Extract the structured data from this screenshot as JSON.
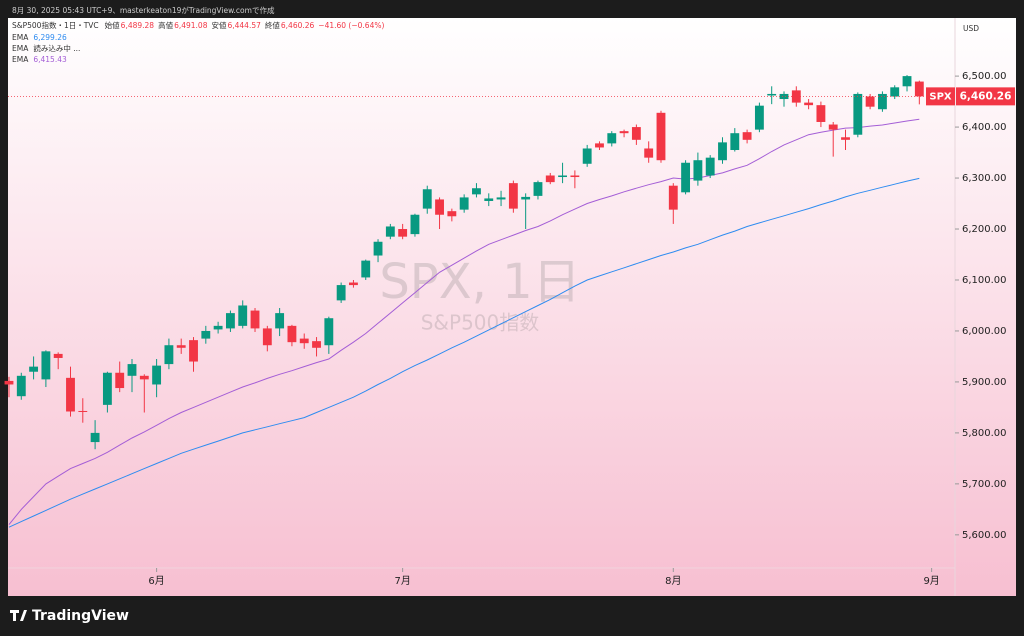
{
  "chart_data": {
    "type": "candlestick",
    "created": "8月 30, 2025 05:43 UTC+9、masterkeaton19がTradingView.comで作成",
    "symbol": "S&P500指数・1日・TVC",
    "ohlc_legend": [
      {
        "label": "始値",
        "value": "6,489.28"
      },
      {
        "label": "高値",
        "value": "6,491.08"
      },
      {
        "label": "安値",
        "value": "6,444.57"
      },
      {
        "label": "終値",
        "value": "6,460.26"
      }
    ],
    "change": "−41.60 (−0.64%)",
    "up_color": "#089981",
    "down_color": "#f23645",
    "open": [
      5902,
      5872,
      5920,
      5905,
      5955,
      5908,
      5843,
      5782,
      5855,
      5918,
      5912,
      5912,
      5895,
      5935,
      5972,
      5982,
      5985,
      6003,
      6005,
      6010,
      6040,
      6005,
      6005,
      6010,
      5985,
      5980,
      5972,
      6060,
      6095,
      6105,
      6148,
      6185,
      6200,
      6190,
      6240,
      6258,
      6235,
      6238,
      6268,
      6255,
      6258,
      6290,
      6258,
      6265,
      6305,
      6302,
      6305,
      6328,
      6368,
      6368,
      6392,
      6400,
      6358,
      6428,
      6285,
      6272,
      6295,
      6305,
      6335,
      6355,
      6390,
      6395,
      6462,
      6455,
      6472,
      6448,
      6443,
      6405,
      6380,
      6385,
      6460,
      6435,
      6460,
      6480,
      6489.28
    ],
    "high": [
      5910,
      5918,
      5950,
      5962,
      5958,
      5930,
      5868,
      5825,
      5920,
      5940,
      5945,
      5915,
      5945,
      5985,
      5985,
      5988,
      6010,
      6018,
      6040,
      6060,
      6045,
      6010,
      6045,
      6012,
      5995,
      5988,
      6028,
      6095,
      6100,
      6140,
      6180,
      6210,
      6210,
      6230,
      6285,
      6262,
      6240,
      6268,
      6290,
      6270,
      6275,
      6295,
      6270,
      6295,
      6310,
      6330,
      6315,
      6365,
      6372,
      6392,
      6395,
      6405,
      6372,
      6432,
      6290,
      6335,
      6350,
      6345,
      6380,
      6398,
      6395,
      6448,
      6480,
      6470,
      6480,
      6455,
      6450,
      6410,
      6395,
      6468,
      6465,
      6470,
      6482,
      6502,
      6491.08
    ],
    "low": [
      5870,
      5865,
      5905,
      5890,
      5925,
      5832,
      5820,
      5768,
      5840,
      5880,
      5880,
      5840,
      5870,
      5925,
      5955,
      5920,
      5975,
      5995,
      5998,
      6005,
      5998,
      5960,
      5990,
      5970,
      5965,
      5950,
      5955,
      6055,
      6085,
      6100,
      6135,
      6180,
      6180,
      6185,
      6230,
      6200,
      6215,
      6232,
      6262,
      6245,
      6245,
      6232,
      6200,
      6258,
      6288,
      6290,
      6280,
      6322,
      6355,
      6362,
      6380,
      6365,
      6330,
      6330,
      6210,
      6268,
      6285,
      6300,
      6328,
      6352,
      6368,
      6390,
      6445,
      6440,
      6440,
      6435,
      6400,
      6342,
      6355,
      6380,
      6435,
      6430,
      6455,
      6470,
      6444.57
    ],
    "close": [
      5895,
      5912,
      5930,
      5960,
      5947,
      5842,
      5842,
      5800,
      5918,
      5888,
      5935,
      5905,
      5932,
      5972,
      5967,
      5940,
      6000,
      6010,
      6035,
      6050,
      6005,
      5972,
      6035,
      5978,
      5976,
      5967,
      6025,
      6090,
      6090,
      6138,
      6175,
      6205,
      6185,
      6228,
      6278,
      6228,
      6225,
      6262,
      6280,
      6260,
      6262,
      6240,
      6263,
      6292,
      6292,
      6305,
      6302,
      6358,
      6360,
      6388,
      6388,
      6375,
      6340,
      6335,
      6238,
      6330,
      6335,
      6340,
      6370,
      6388,
      6375,
      6442,
      6465,
      6465,
      6448,
      6443,
      6410,
      6395,
      6375,
      6465,
      6440,
      6465,
      6478,
      6500,
      6460.26
    ],
    "indicators": [
      {
        "name": "EMA",
        "value_label": "6,299.26",
        "color": "#2e8cf0",
        "values": [
          5615,
          5626,
          5637,
          5648,
          5659,
          5670,
          5680,
          5690,
          5700,
          5710,
          5720,
          5730,
          5740,
          5750,
          5760,
          5768,
          5776,
          5784,
          5792,
          5800,
          5806,
          5812,
          5818,
          5824,
          5830,
          5840,
          5850,
          5860,
          5870,
          5882,
          5895,
          5907,
          5920,
          5932,
          5943,
          5955,
          5967,
          5978,
          5990,
          6002,
          6014,
          6026,
          6038,
          6050,
          6062,
          6075,
          6088,
          6100,
          6108,
          6116,
          6124,
          6132,
          6140,
          6148,
          6155,
          6163,
          6170,
          6179,
          6188,
          6196,
          6205,
          6212,
          6219,
          6226,
          6233,
          6240,
          6248,
          6255,
          6263,
          6270,
          6276,
          6282,
          6288,
          6294,
          6299.26
        ]
      },
      {
        "name": "EMA",
        "status": "読み込み中 ..."
      },
      {
        "name": "EMA",
        "value_label": "6,415.43",
        "color": "#a45ed6",
        "values": [
          5620,
          5650,
          5675,
          5700,
          5715,
          5730,
          5740,
          5750,
          5762,
          5776,
          5790,
          5802,
          5815,
          5828,
          5840,
          5850,
          5860,
          5870,
          5880,
          5890,
          5898,
          5907,
          5915,
          5922,
          5930,
          5938,
          5945,
          5962,
          5978,
          5995,
          6015,
          6035,
          6055,
          6075,
          6095,
          6115,
          6129,
          6143,
          6157,
          6170,
          6179,
          6188,
          6197,
          6205,
          6216,
          6228,
          6239,
          6250,
          6258,
          6265,
          6273,
          6280,
          6287,
          6293,
          6300,
          6298,
          6300,
          6305,
          6310,
          6318,
          6325,
          6338,
          6352,
          6365,
          6375,
          6385,
          6390,
          6394,
          6398,
          6399,
          6402,
          6404,
          6408,
          6412,
          6415.43
        ]
      }
    ],
    "watermark": "SPX, 1日",
    "watermark_sub": "S&P500指数",
    "ticker": "SPX",
    "last_label": "6,460.26",
    "currency": "USD",
    "brand": "TradingView",
    "ylim": [
      5480,
      6614
    ],
    "yticks": [
      {
        "value": 5600,
        "label": "5,600.00"
      },
      {
        "value": 5700,
        "label": "5,700.00"
      },
      {
        "value": 5800,
        "label": "5,800.00"
      },
      {
        "value": 5900,
        "label": "5,900.00"
      },
      {
        "value": 6000,
        "label": "6,000.00"
      },
      {
        "value": 6100,
        "label": "6,100.00"
      },
      {
        "value": 6200,
        "label": "6,200.00"
      },
      {
        "value": 6300,
        "label": "6,300.00"
      },
      {
        "value": 6400,
        "label": "6,400.00"
      },
      {
        "value": 6500,
        "label": "6,500.00"
      }
    ],
    "xlim": [
      -0.08,
      76.9
    ],
    "xticks": [
      {
        "value": 12,
        "label": "6月"
      },
      {
        "value": 32,
        "label": "7月"
      },
      {
        "value": 54,
        "label": "8月"
      },
      {
        "value": 75,
        "label": "9月"
      }
    ]
  }
}
